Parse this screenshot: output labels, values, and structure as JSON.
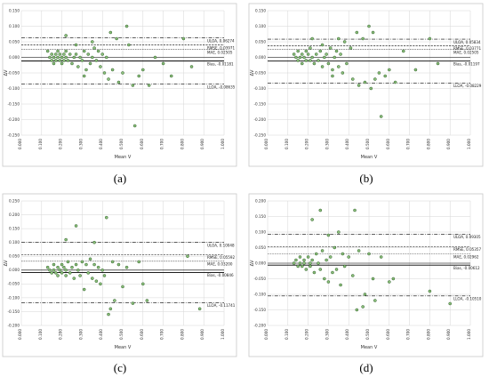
{
  "colors": {
    "point_fill": "#8bbf7a",
    "point_stroke": "#2f5f2a",
    "line": "#000000",
    "grid": "#d6d6d6"
  },
  "chart_data": [
    {
      "type": "scatter",
      "caption": "(a)",
      "xlabel": "Mean V",
      "ylabel": "ΔV",
      "xlim": [
        0,
        1
      ],
      "ylim": [
        -0.25,
        0.15
      ],
      "xticks": [
        "0.000",
        "0.100",
        "0.200",
        "0.300",
        "0.400",
        "0.500",
        "0.600",
        "0.700",
        "0.800",
        "0.900",
        "1.000"
      ],
      "yticks": [
        "0.150",
        "0.100",
        "0.050",
        "0.000",
        "-0.050",
        "-0.100",
        "-0.150",
        "-0.200",
        "-0.250"
      ],
      "reference_lines": [
        {
          "label": "ULOA, 0.06274",
          "value": 0.06274,
          "style": "dash-dot"
        },
        {
          "label": "RMSE, 0.03971",
          "value": 0.03971,
          "style": "dashed"
        },
        {
          "label": "MAE, 0.02505",
          "value": 0.02505,
          "style": "dotted"
        },
        {
          "label": "Bias, -0.01181",
          "value": -0.01181,
          "style": "solid"
        },
        {
          "label": "LLOA, -0.08635",
          "value": -0.08635,
          "style": "dash-dot"
        }
      ],
      "grid": true,
      "points": [
        [
          0.13,
          0.02
        ],
        [
          0.14,
          0.0
        ],
        [
          0.15,
          -0.01
        ],
        [
          0.15,
          0.01
        ],
        [
          0.16,
          0.0
        ],
        [
          0.16,
          -0.02
        ],
        [
          0.17,
          0.01
        ],
        [
          0.17,
          -0.01
        ],
        [
          0.18,
          0.0
        ],
        [
          0.18,
          0.02
        ],
        [
          0.19,
          -0.01
        ],
        [
          0.19,
          0.01
        ],
        [
          0.2,
          0.0
        ],
        [
          0.2,
          -0.02
        ],
        [
          0.21,
          0.01
        ],
        [
          0.21,
          -0.01
        ],
        [
          0.22,
          0.02
        ],
        [
          0.22,
          0.0
        ],
        [
          0.23,
          -0.01
        ],
        [
          0.24,
          0.01
        ],
        [
          0.25,
          -0.02
        ],
        [
          0.26,
          0.0
        ],
        [
          0.27,
          0.01
        ],
        [
          0.28,
          -0.03
        ],
        [
          0.29,
          0.0
        ],
        [
          0.3,
          -0.01
        ],
        [
          0.31,
          0.02
        ],
        [
          0.32,
          -0.04
        ],
        [
          0.33,
          0.01
        ],
        [
          0.34,
          -0.02
        ],
        [
          0.35,
          0.0
        ],
        [
          0.36,
          0.03
        ],
        [
          0.37,
          -0.01
        ],
        [
          0.38,
          0.02
        ],
        [
          0.39,
          -0.03
        ],
        [
          0.4,
          0.01
        ],
        [
          0.41,
          -0.05
        ],
        [
          0.42,
          0.0
        ],
        [
          0.43,
          -0.07
        ],
        [
          0.44,
          0.08
        ],
        [
          0.45,
          -0.04
        ],
        [
          0.47,
          0.06
        ],
        [
          0.48,
          -0.08
        ],
        [
          0.5,
          -0.05
        ],
        [
          0.52,
          0.1
        ],
        [
          0.53,
          0.04
        ],
        [
          0.55,
          -0.09
        ],
        [
          0.56,
          -0.22
        ],
        [
          0.58,
          -0.06
        ],
        [
          0.6,
          -0.04
        ],
        [
          0.63,
          -0.09
        ],
        [
          0.66,
          0.0
        ],
        [
          0.7,
          -0.02
        ],
        [
          0.74,
          -0.06
        ],
        [
          0.8,
          0.06
        ],
        [
          0.84,
          -0.03
        ],
        [
          0.22,
          0.07
        ],
        [
          0.27,
          0.04
        ],
        [
          0.31,
          -0.06
        ],
        [
          0.35,
          0.05
        ]
      ]
    },
    {
      "type": "scatter",
      "caption": "(b)",
      "xlabel": "Mean V",
      "ylabel": "ΔV",
      "xlim": [
        0,
        1
      ],
      "ylim": [
        -0.25,
        0.15
      ],
      "xticks": [
        "0.000",
        "0.100",
        "0.200",
        "0.300",
        "0.400",
        "0.500",
        "0.600",
        "0.700",
        "0.800",
        "0.900",
        "1.000"
      ],
      "yticks": [
        "0.150",
        "0.100",
        "0.050",
        "0.000",
        "-0.050",
        "-0.100",
        "-0.150",
        "-0.200",
        "-0.250"
      ],
      "reference_lines": [
        {
          "label": "ULOA, 0.05834",
          "value": 0.05834,
          "style": "dash-dot"
        },
        {
          "label": "RMSE, 0.03771",
          "value": 0.03771,
          "style": "dashed"
        },
        {
          "label": "MAE, 0.02505",
          "value": 0.02505,
          "style": "dotted"
        },
        {
          "label": "Bias, -0.01197",
          "value": -0.01197,
          "style": "solid"
        },
        {
          "label": "LLOA, -0.08229",
          "value": -0.08229,
          "style": "dash-dot"
        }
      ],
      "grid": true,
      "points": [
        [
          0.13,
          0.01
        ],
        [
          0.14,
          0.0
        ],
        [
          0.15,
          0.02
        ],
        [
          0.15,
          -0.01
        ],
        [
          0.16,
          0.0
        ],
        [
          0.17,
          0.01
        ],
        [
          0.17,
          -0.02
        ],
        [
          0.18,
          0.0
        ],
        [
          0.19,
          0.02
        ],
        [
          0.19,
          -0.01
        ],
        [
          0.2,
          0.01
        ],
        [
          0.21,
          -0.01
        ],
        [
          0.21,
          0.03
        ],
        [
          0.22,
          0.0
        ],
        [
          0.23,
          -0.02
        ],
        [
          0.24,
          0.01
        ],
        [
          0.25,
          -0.01
        ],
        [
          0.26,
          0.02
        ],
        [
          0.27,
          -0.03
        ],
        [
          0.28,
          0.0
        ],
        [
          0.29,
          0.01
        ],
        [
          0.3,
          -0.02
        ],
        [
          0.31,
          0.03
        ],
        [
          0.32,
          -0.04
        ],
        [
          0.33,
          0.0
        ],
        [
          0.34,
          0.02
        ],
        [
          0.35,
          -0.03
        ],
        [
          0.36,
          0.01
        ],
        [
          0.37,
          -0.05
        ],
        [
          0.38,
          0.05
        ],
        [
          0.39,
          -0.02
        ],
        [
          0.41,
          0.03
        ],
        [
          0.42,
          -0.07
        ],
        [
          0.44,
          0.08
        ],
        [
          0.45,
          -0.09
        ],
        [
          0.47,
          0.06
        ],
        [
          0.48,
          -0.08
        ],
        [
          0.5,
          0.1
        ],
        [
          0.51,
          -0.1
        ],
        [
          0.52,
          0.08
        ],
        [
          0.53,
          -0.07
        ],
        [
          0.55,
          -0.05
        ],
        [
          0.56,
          -0.19
        ],
        [
          0.58,
          -0.06
        ],
        [
          0.6,
          -0.04
        ],
        [
          0.63,
          -0.08
        ],
        [
          0.67,
          0.02
        ],
        [
          0.73,
          -0.04
        ],
        [
          0.8,
          0.06
        ],
        [
          0.84,
          -0.02
        ],
        [
          0.22,
          0.06
        ],
        [
          0.27,
          0.04
        ],
        [
          0.32,
          -0.06
        ],
        [
          0.35,
          0.06
        ]
      ]
    },
    {
      "type": "scatter",
      "caption": "(c)",
      "xlabel": "Mean V",
      "ylabel": "ΔV",
      "xlim": [
        0,
        1
      ],
      "ylim": [
        -0.2,
        0.25
      ],
      "xticks": [
        "0.000",
        "0.100",
        "0.200",
        "0.300",
        "0.400",
        "0.500",
        "0.600",
        "0.700",
        "0.800",
        "0.900",
        "1.000"
      ],
      "yticks": [
        "0.250",
        "0.200",
        "0.150",
        "0.100",
        "0.050",
        "0.000",
        "-0.050",
        "-0.100",
        "-0.150",
        "-0.200"
      ],
      "reference_lines": [
        {
          "label": "ULOA, 0.10048",
          "value": 0.10048,
          "style": "dash-dot"
        },
        {
          "label": "RMSE, 0.05592",
          "value": 0.05592,
          "style": "dashed"
        },
        {
          "label": "MAE, 0.03200",
          "value": 0.032,
          "style": "dotted"
        },
        {
          "label": "Bias, -0.00846",
          "value": -0.00846,
          "style": "solid"
        },
        {
          "label": "LLOA, -0.11741",
          "value": -0.11741,
          "style": "dash-dot"
        }
      ],
      "grid": true,
      "points": [
        [
          0.13,
          0.01
        ],
        [
          0.14,
          0.0
        ],
        [
          0.15,
          -0.01
        ],
        [
          0.16,
          0.02
        ],
        [
          0.16,
          0.0
        ],
        [
          0.17,
          -0.01
        ],
        [
          0.18,
          0.01
        ],
        [
          0.18,
          -0.02
        ],
        [
          0.19,
          0.0
        ],
        [
          0.2,
          0.02
        ],
        [
          0.2,
          -0.01
        ],
        [
          0.21,
          0.01
        ],
        [
          0.22,
          -0.02
        ],
        [
          0.22,
          0.0
        ],
        [
          0.23,
          0.03
        ],
        [
          0.24,
          -0.01
        ],
        [
          0.25,
          0.01
        ],
        [
          0.26,
          -0.03
        ],
        [
          0.27,
          0.02
        ],
        [
          0.28,
          0.0
        ],
        [
          0.29,
          -0.02
        ],
        [
          0.3,
          0.03
        ],
        [
          0.31,
          -0.07
        ],
        [
          0.32,
          0.02
        ],
        [
          0.33,
          -0.01
        ],
        [
          0.34,
          0.04
        ],
        [
          0.35,
          -0.03
        ],
        [
          0.36,
          0.02
        ],
        [
          0.37,
          -0.04
        ],
        [
          0.38,
          0.01
        ],
        [
          0.39,
          -0.05
        ],
        [
          0.4,
          0.0
        ],
        [
          0.41,
          -0.02
        ],
        [
          0.42,
          0.19
        ],
        [
          0.43,
          -0.16
        ],
        [
          0.44,
          -0.14
        ],
        [
          0.45,
          0.03
        ],
        [
          0.46,
          -0.11
        ],
        [
          0.48,
          0.02
        ],
        [
          0.5,
          -0.06
        ],
        [
          0.52,
          0.01
        ],
        [
          0.55,
          -0.12
        ],
        [
          0.58,
          0.03
        ],
        [
          0.6,
          -0.05
        ],
        [
          0.62,
          -0.11
        ],
        [
          0.82,
          0.05
        ],
        [
          0.88,
          -0.14
        ],
        [
          0.22,
          0.11
        ],
        [
          0.27,
          0.16
        ],
        [
          0.36,
          0.1
        ]
      ]
    },
    {
      "type": "scatter",
      "caption": "(d)",
      "xlabel": "Mean V",
      "ylabel": "ΔV",
      "xlim": [
        0,
        1
      ],
      "ylim": [
        -0.2,
        0.2
      ],
      "xticks": [
        "0.000",
        "0.100",
        "0.200",
        "0.300",
        "0.400",
        "0.500",
        "0.600",
        "0.700",
        "0.800",
        "0.900",
        "1.000"
      ],
      "yticks": [
        "0.200",
        "0.150",
        "0.100",
        "0.050",
        "0.000",
        "-0.050",
        "-0.100",
        "-0.150",
        "-0.200"
      ],
      "reference_lines": [
        {
          "label": "ULOA, 0.09305",
          "value": 0.09305,
          "style": "dash-dot"
        },
        {
          "label": "RMSE, 0.05357",
          "value": 0.05357,
          "style": "dashed"
        },
        {
          "label": "MAE, 0.02962",
          "value": 0.02962,
          "style": "dotted"
        },
        {
          "label": "Bias, -0.00612",
          "value": -0.00612,
          "style": "solid"
        },
        {
          "label": "LLOA, -0.10510",
          "value": -0.1051,
          "style": "dash-dot"
        }
      ],
      "grid": true,
      "points": [
        [
          0.13,
          0.0
        ],
        [
          0.14,
          0.01
        ],
        [
          0.15,
          -0.01
        ],
        [
          0.16,
          0.02
        ],
        [
          0.16,
          0.0
        ],
        [
          0.17,
          -0.01
        ],
        [
          0.18,
          0.01
        ],
        [
          0.18,
          0.0
        ],
        [
          0.19,
          -0.02
        ],
        [
          0.2,
          0.02
        ],
        [
          0.21,
          0.0
        ],
        [
          0.21,
          -0.01
        ],
        [
          0.22,
          0.01
        ],
        [
          0.23,
          -0.03
        ],
        [
          0.24,
          0.03
        ],
        [
          0.25,
          0.0
        ],
        [
          0.26,
          -0.02
        ],
        [
          0.27,
          0.04
        ],
        [
          0.28,
          -0.05
        ],
        [
          0.29,
          0.01
        ],
        [
          0.3,
          -0.06
        ],
        [
          0.31,
          0.02
        ],
        [
          0.32,
          -0.03
        ],
        [
          0.33,
          0.05
        ],
        [
          0.34,
          -0.02
        ],
        [
          0.35,
          0.1
        ],
        [
          0.36,
          -0.07
        ],
        [
          0.37,
          0.03
        ],
        [
          0.38,
          -0.01
        ],
        [
          0.4,
          0.02
        ],
        [
          0.42,
          -0.04
        ],
        [
          0.43,
          0.17
        ],
        [
          0.44,
          -0.15
        ],
        [
          0.45,
          0.04
        ],
        [
          0.47,
          -0.14
        ],
        [
          0.48,
          -0.1
        ],
        [
          0.5,
          0.03
        ],
        [
          0.52,
          -0.05
        ],
        [
          0.53,
          -0.12
        ],
        [
          0.56,
          0.02
        ],
        [
          0.6,
          -0.06
        ],
        [
          0.62,
          -0.05
        ],
        [
          0.8,
          -0.09
        ],
        [
          0.9,
          -0.13
        ],
        [
          0.22,
          0.14
        ],
        [
          0.26,
          0.17
        ],
        [
          0.3,
          0.09
        ]
      ]
    }
  ]
}
